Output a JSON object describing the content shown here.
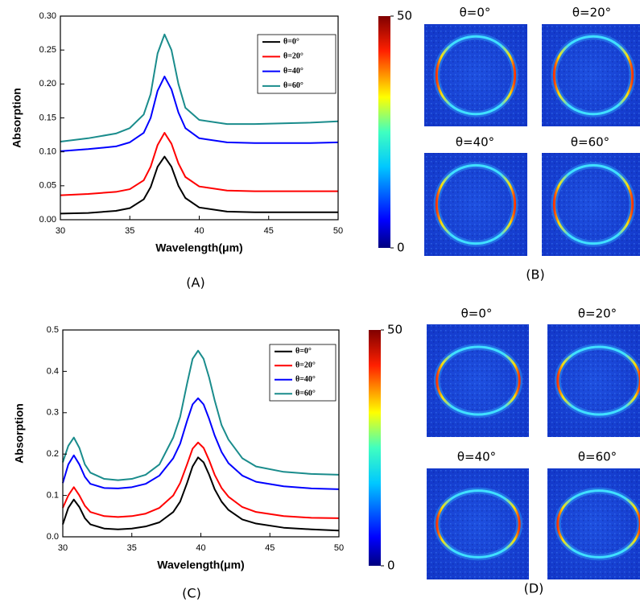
{
  "chart_data": [
    {
      "type": "line",
      "panel_label": "(A)",
      "x_label": "Wavelength(μm)",
      "y_label": "Absorption",
      "xlim": [
        30,
        50
      ],
      "xticks": [
        30,
        35,
        40,
        45,
        50
      ],
      "ylim": [
        0,
        0.3
      ],
      "yticks": [
        {
          "value": 0,
          "label": "0.00"
        },
        {
          "value": 0.05,
          "label": "0.05"
        },
        {
          "value": 0.1,
          "label": "0.10"
        },
        {
          "value": 0.15,
          "label": "0.15"
        },
        {
          "value": 0.2,
          "label": "0.20"
        },
        {
          "value": 0.25,
          "label": "0.25"
        },
        {
          "value": 0.3,
          "label": "0.30"
        }
      ],
      "x": [
        30,
        32,
        34,
        35,
        36,
        36.5,
        37,
        37.5,
        38,
        38.5,
        39,
        40,
        42,
        44,
        46,
        48,
        50
      ],
      "series": [
        {
          "name": "θ=0°",
          "color": "#000000",
          "values": [
            0.009,
            0.01,
            0.013,
            0.017,
            0.03,
            0.048,
            0.078,
            0.093,
            0.078,
            0.05,
            0.032,
            0.018,
            0.012,
            0.011,
            0.011,
            0.011,
            0.011
          ]
        },
        {
          "name": "θ=20°",
          "color": "#ff0000",
          "values": [
            0.036,
            0.038,
            0.041,
            0.045,
            0.058,
            0.078,
            0.11,
            0.128,
            0.112,
            0.083,
            0.063,
            0.049,
            0.043,
            0.042,
            0.042,
            0.042,
            0.042
          ]
        },
        {
          "name": "θ=40°",
          "color": "#0000ff",
          "values": [
            0.101,
            0.104,
            0.108,
            0.114,
            0.128,
            0.15,
            0.19,
            0.211,
            0.192,
            0.158,
            0.135,
            0.12,
            0.114,
            0.113,
            0.113,
            0.113,
            0.114
          ]
        },
        {
          "name": "θ=60°",
          "color": "#1a8c8c",
          "values": [
            0.115,
            0.12,
            0.127,
            0.135,
            0.155,
            0.185,
            0.245,
            0.273,
            0.25,
            0.2,
            0.165,
            0.147,
            0.141,
            0.141,
            0.142,
            0.143,
            0.145
          ]
        }
      ]
    },
    {
      "type": "line",
      "panel_label": "(C)",
      "x_label": "Wavelength(μm)",
      "y_label": "Absorption",
      "xlim": [
        30,
        50
      ],
      "xticks": [
        30,
        35,
        40,
        45,
        50
      ],
      "ylim": [
        0,
        0.5
      ],
      "yticks": [
        {
          "value": 0,
          "label": "0.0"
        },
        0.1,
        0.2,
        0.3,
        0.4,
        0.5
      ],
      "x": [
        30,
        30.4,
        30.8,
        31.2,
        31.6,
        32,
        33,
        34,
        35,
        36,
        37,
        38,
        38.5,
        39,
        39.4,
        39.8,
        40.2,
        40.6,
        41,
        41.5,
        42,
        43,
        44,
        46,
        48,
        50
      ],
      "series": [
        {
          "name": "θ=0°",
          "color": "#000000",
          "values": [
            0.03,
            0.07,
            0.09,
            0.072,
            0.045,
            0.03,
            0.02,
            0.018,
            0.02,
            0.025,
            0.035,
            0.06,
            0.085,
            0.13,
            0.17,
            0.192,
            0.18,
            0.15,
            0.115,
            0.085,
            0.065,
            0.042,
            0.032,
            0.022,
            0.018,
            0.015
          ]
        },
        {
          "name": "θ=20°",
          "color": "#ff0000",
          "values": [
            0.07,
            0.1,
            0.12,
            0.1,
            0.075,
            0.06,
            0.05,
            0.048,
            0.05,
            0.056,
            0.07,
            0.1,
            0.13,
            0.175,
            0.213,
            0.228,
            0.215,
            0.185,
            0.15,
            0.118,
            0.097,
            0.072,
            0.06,
            0.05,
            0.046,
            0.045
          ]
        },
        {
          "name": "θ=40°",
          "color": "#0000ff",
          "values": [
            0.13,
            0.175,
            0.197,
            0.175,
            0.145,
            0.128,
            0.118,
            0.117,
            0.12,
            0.128,
            0.148,
            0.19,
            0.225,
            0.28,
            0.32,
            0.335,
            0.32,
            0.285,
            0.245,
            0.205,
            0.178,
            0.148,
            0.133,
            0.122,
            0.117,
            0.115
          ]
        },
        {
          "name": "θ=60°",
          "color": "#1a8c8c",
          "values": [
            0.18,
            0.22,
            0.24,
            0.215,
            0.175,
            0.155,
            0.14,
            0.137,
            0.14,
            0.15,
            0.175,
            0.24,
            0.29,
            0.37,
            0.43,
            0.45,
            0.43,
            0.385,
            0.33,
            0.27,
            0.235,
            0.19,
            0.17,
            0.157,
            0.152,
            0.15
          ]
        }
      ]
    }
  ],
  "heatmap_panels": [
    {
      "panel_label": "(B)",
      "colorbar": {
        "lim": [
          0,
          50
        ],
        "ticks": [
          0,
          50
        ]
      },
      "titles": [
        "θ=0°",
        "θ=20°",
        "θ=40°",
        "θ=60°"
      ]
    },
    {
      "panel_label": "(D)",
      "colorbar": {
        "lim": [
          0,
          50
        ],
        "ticks": [
          0,
          50
        ]
      },
      "titles": [
        "θ=0°",
        "θ=20°",
        "θ=40°",
        "θ=60°"
      ]
    }
  ]
}
